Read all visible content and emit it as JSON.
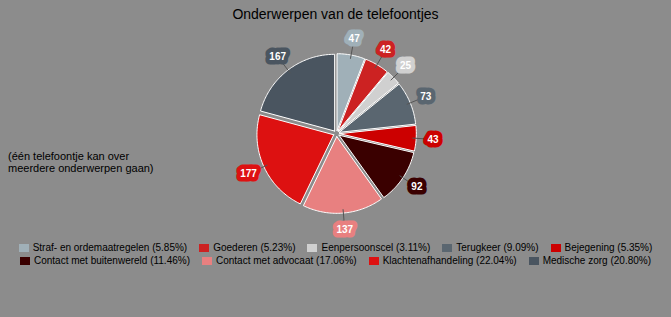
{
  "chart_data": {
    "type": "pie",
    "title": "Onderwerpen van de telefoontjes",
    "categories": [
      "Straf- en ordemaatregelen (5.85%)",
      "Goederen (5.23%)",
      "Eenpersoonscel (3.11%)",
      "Terugkeer (9.09%)",
      "Bejegening (5.35%)",
      "Contact met buitenwereld (11.46%)",
      "Contact met advocaat (17.06%)",
      "Klachtenafhandeling (22.04%)",
      "Medische zorg (20.80%)"
    ],
    "values": [
      47,
      42,
      25,
      73,
      43,
      92,
      137,
      177,
      167
    ],
    "colors": [
      "#a0b0b8",
      "#cc2222",
      "#d0d0d0",
      "#5a6670",
      "#cc0000",
      "#3a0000",
      "#e88080",
      "#dd1111",
      "#4a5560"
    ],
    "data_labels": true,
    "legend": "bottom",
    "annotation": "(één telefoontje kan over\nmeerdere onderwerpen gaan)"
  }
}
